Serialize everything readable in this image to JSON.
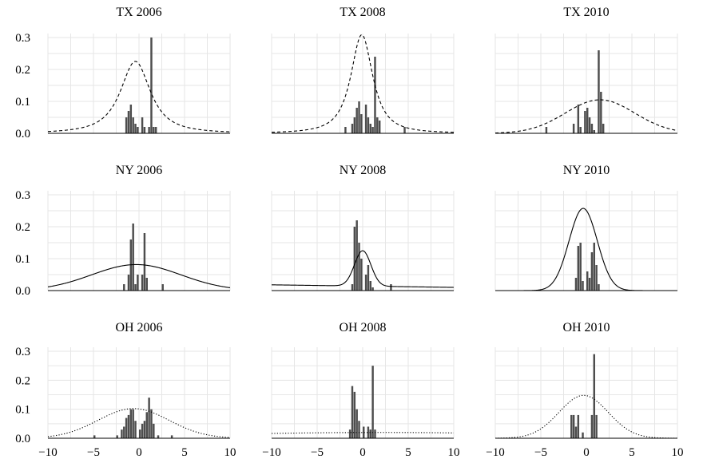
{
  "chart_data": {
    "type": "histogram-density-facets",
    "layout": {
      "rows": 3,
      "cols": 3
    },
    "xlim": [
      -10,
      10
    ],
    "ylim": [
      0,
      0.3
    ],
    "x_ticks": [
      -10,
      -5,
      0,
      5,
      10
    ],
    "x_tick_labels": [
      "−10",
      "−5",
      "0",
      "5",
      "10"
    ],
    "y_ticks": [
      0,
      0.1,
      0.2,
      0.3
    ],
    "y_tick_labels": [
      "0.0",
      "0.1",
      "0.2",
      "0.3"
    ],
    "grid": true,
    "bar_color": "#4d4d4d",
    "bin_width": 0.25,
    "panels": [
      {
        "title": "TX 2006",
        "curve": {
          "dist": "t",
          "loc": -0.4,
          "scale": 1.85,
          "df": 1.5,
          "style": "dashed"
        },
        "bars": [
          [
            -1.5,
            0.05
          ],
          [
            -1.25,
            0.07
          ],
          [
            -1.0,
            0.09
          ],
          [
            -0.75,
            0.05
          ],
          [
            -0.5,
            0.03
          ],
          [
            -0.25,
            0.02
          ],
          [
            0.25,
            0.05
          ],
          [
            0.5,
            0.02
          ],
          [
            1.0,
            0.02
          ],
          [
            1.25,
            0.3
          ],
          [
            1.5,
            0.02
          ],
          [
            1.75,
            0.02
          ]
        ]
      },
      {
        "title": "TX 2008",
        "curve": {
          "dist": "t",
          "loc": -0.1,
          "scale": 1.35,
          "df": 1.5,
          "style": "dashed"
        },
        "bars": [
          [
            -2.0,
            0.02
          ],
          [
            -1.25,
            0.03
          ],
          [
            -1.0,
            0.05
          ],
          [
            -0.75,
            0.08
          ],
          [
            -0.5,
            0.1
          ],
          [
            -0.25,
            0.06
          ],
          [
            0.25,
            0.09
          ],
          [
            0.5,
            0.05
          ],
          [
            0.75,
            0.03
          ],
          [
            1.0,
            0.02
          ],
          [
            1.25,
            0.24
          ],
          [
            1.5,
            0.05
          ],
          [
            1.75,
            0.04
          ],
          [
            4.5,
            0.02
          ]
        ]
      },
      {
        "title": "TX 2010",
        "curve": {
          "dist": "normal",
          "loc": 1.5,
          "scale": 3.8,
          "style": "dashed"
        },
        "bars": [
          [
            -4.5,
            0.02
          ],
          [
            -1.5,
            0.03
          ],
          [
            -1.0,
            0.09
          ],
          [
            -0.75,
            0.02
          ],
          [
            -0.25,
            0.07
          ],
          [
            0.0,
            0.08
          ],
          [
            0.25,
            0.05
          ],
          [
            0.5,
            0.03
          ],
          [
            0.75,
            0.01
          ],
          [
            1.25,
            0.26
          ],
          [
            1.5,
            0.13
          ],
          [
            1.75,
            0.03
          ]
        ]
      },
      {
        "title": "NY 2006",
        "curve": {
          "dist": "normal",
          "loc": -0.3,
          "scale": 4.9,
          "style": "solid"
        },
        "bars": [
          [
            -1.75,
            0.02
          ],
          [
            -1.25,
            0.05
          ],
          [
            -1.0,
            0.16
          ],
          [
            -0.75,
            0.21
          ],
          [
            -0.5,
            0.02
          ],
          [
            -0.25,
            0.05
          ],
          [
            0.25,
            0.05
          ],
          [
            0.5,
            0.18
          ],
          [
            0.75,
            0.04
          ],
          [
            2.5,
            0.02
          ]
        ]
      },
      {
        "title": "NY 2008",
        "curve": {
          "dist": "mix",
          "loc": 0.0,
          "scale": 0.9,
          "w": 0.25,
          "base0": 0.018,
          "base1": 0.01,
          "style": "solid"
        },
        "bars": [
          [
            -1.25,
            0.02
          ],
          [
            -1.0,
            0.2
          ],
          [
            -0.75,
            0.22
          ],
          [
            -0.5,
            0.15
          ],
          [
            -0.25,
            0.1
          ],
          [
            0.25,
            0.05
          ],
          [
            0.5,
            0.08
          ],
          [
            0.75,
            0.03
          ],
          [
            1.0,
            0.01
          ],
          [
            3.0,
            0.02
          ]
        ]
      },
      {
        "title": "NY 2010",
        "curve": {
          "dist": "normal",
          "loc": -0.35,
          "scale": 1.55,
          "style": "solid"
        },
        "bars": [
          [
            -1.25,
            0.04
          ],
          [
            -1.0,
            0.14
          ],
          [
            -0.75,
            0.15
          ],
          [
            -0.5,
            0.03
          ],
          [
            0.0,
            0.06
          ],
          [
            0.25,
            0.04
          ],
          [
            0.5,
            0.12
          ],
          [
            0.75,
            0.15
          ],
          [
            1.0,
            0.08
          ],
          [
            1.25,
            0.02
          ]
        ]
      },
      {
        "title": "OH 2006",
        "curve": {
          "dist": "normal",
          "loc": -0.6,
          "scale": 3.9,
          "style": "dotted"
        },
        "bars": [
          [
            -5.0,
            0.01
          ],
          [
            -2.5,
            0.01
          ],
          [
            -2.0,
            0.03
          ],
          [
            -1.75,
            0.04
          ],
          [
            -1.5,
            0.07
          ],
          [
            -1.25,
            0.08
          ],
          [
            -1.0,
            0.1
          ],
          [
            -0.75,
            0.1
          ],
          [
            -0.5,
            0.06
          ],
          [
            0.0,
            0.03
          ],
          [
            0.25,
            0.05
          ],
          [
            0.5,
            0.06
          ],
          [
            0.75,
            0.09
          ],
          [
            1.0,
            0.14
          ],
          [
            1.25,
            0.1
          ],
          [
            1.5,
            0.05
          ],
          [
            2.0,
            0.01
          ],
          [
            3.5,
            0.01
          ]
        ]
      },
      {
        "title": "OH 2008",
        "curve": {
          "dist": "normal",
          "loc": 2.0,
          "scale": 20.0,
          "style": "dotted"
        },
        "bars": [
          [
            -1.5,
            0.03
          ],
          [
            -1.25,
            0.18
          ],
          [
            -1.0,
            0.16
          ],
          [
            -0.75,
            0.1
          ],
          [
            -0.5,
            0.06
          ],
          [
            0.0,
            0.04
          ],
          [
            0.5,
            0.04
          ],
          [
            0.75,
            0.03
          ],
          [
            1.0,
            0.25
          ],
          [
            1.25,
            0.03
          ]
        ]
      },
      {
        "title": "OH 2010",
        "curve": {
          "dist": "normal",
          "loc": -0.3,
          "scale": 2.7,
          "style": "dotted"
        },
        "bars": [
          [
            -1.75,
            0.08
          ],
          [
            -1.5,
            0.08
          ],
          [
            -1.25,
            0.04
          ],
          [
            -1.0,
            0.08
          ],
          [
            -0.5,
            0.02
          ],
          [
            0.5,
            0.08
          ],
          [
            0.75,
            0.29
          ],
          [
            1.0,
            0.08
          ]
        ]
      }
    ]
  }
}
